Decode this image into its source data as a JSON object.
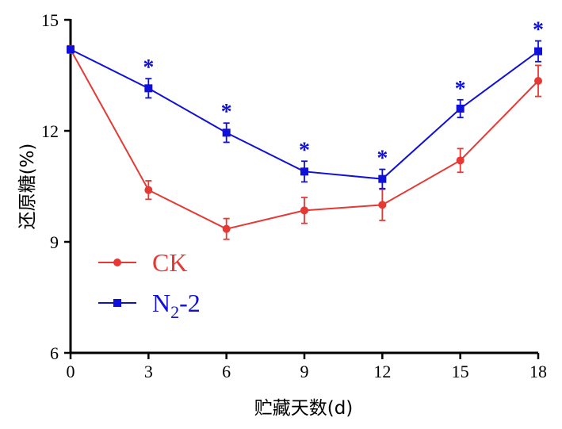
{
  "chart_data": {
    "type": "line",
    "xlabel": "贮藏天数(d)",
    "ylabel": "还原糖(%)",
    "x": [
      0,
      3,
      6,
      9,
      12,
      15,
      18
    ],
    "x_ticks": [
      "0",
      "3",
      "6",
      "9",
      "12",
      "15",
      "18"
    ],
    "y_ticks": [
      "6",
      "9",
      "12",
      "15"
    ],
    "xlim": [
      0,
      18
    ],
    "ylim": [
      6,
      15
    ],
    "grid": false,
    "legend_position": "bottom-left",
    "series": [
      {
        "name": "CK",
        "color": "#e53935",
        "marker": "circle",
        "values": [
          14.2,
          10.4,
          9.35,
          9.85,
          10.0,
          11.2,
          13.35
        ],
        "errors": [
          0.1,
          0.25,
          0.28,
          0.35,
          0.42,
          0.32,
          0.42
        ]
      },
      {
        "name_main": "N",
        "name_sub": "2",
        "name_tail": "-2",
        "color": "#1010d8",
        "marker": "square",
        "values": [
          14.2,
          13.15,
          11.95,
          10.9,
          10.7,
          12.6,
          14.15
        ],
        "errors": [
          0.08,
          0.26,
          0.26,
          0.28,
          0.26,
          0.24,
          0.28
        ],
        "significance": [
          "",
          "*",
          "*",
          "*",
          "*",
          "*",
          "*"
        ]
      }
    ]
  }
}
